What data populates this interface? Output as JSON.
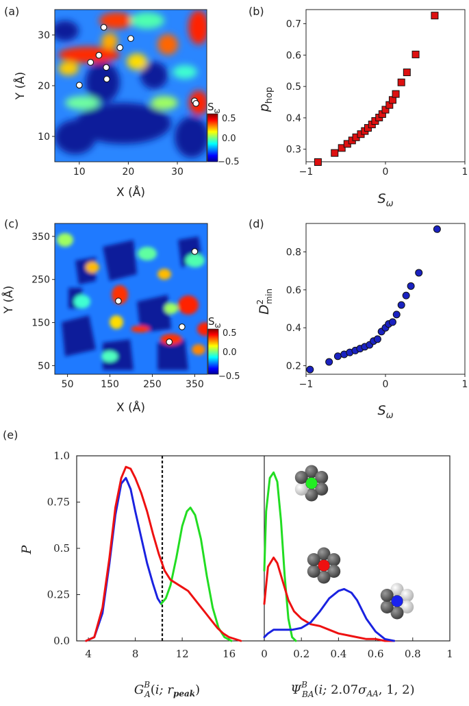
{
  "panel_labels": {
    "a": "(a)",
    "b": "(b)",
    "c": "(c)",
    "d": "(d)",
    "e": "(e)"
  },
  "chart_data": [
    {
      "id": "a",
      "type": "heatmap",
      "xlabel": "X (Å)",
      "ylabel": "Y (Å)",
      "xlim": [
        5,
        36
      ],
      "ylim": [
        5,
        35
      ],
      "xticks": [
        10,
        20,
        30
      ],
      "yticks": [
        10,
        20,
        30
      ],
      "colorbar": {
        "label": "S_ω",
        "range": [
          -0.5,
          0.5
        ],
        "ticks": [
          "0.5",
          "0.0",
          "−0.5"
        ]
      },
      "markers": [
        [
          15,
          31.5
        ],
        [
          20.5,
          29.3
        ],
        [
          18.3,
          27.5
        ],
        [
          14,
          26
        ],
        [
          12.3,
          24.6
        ],
        [
          15.5,
          23.6
        ],
        [
          15.6,
          21.3
        ],
        [
          10,
          20.1
        ],
        [
          33.5,
          17
        ],
        [
          33.8,
          16.5
        ]
      ]
    },
    {
      "id": "b",
      "type": "scatter",
      "marker": "square",
      "color": "#dd1010",
      "xlabel": "S_ω",
      "ylabel": "p_hop",
      "xlim": [
        -1,
        1
      ],
      "ylim": [
        0.26,
        0.745
      ],
      "xticks": [
        "−1",
        "0",
        "1"
      ],
      "yticks": [
        "0.3",
        "0.4",
        "0.5",
        "0.6",
        "0.7"
      ],
      "x": [
        -0.85,
        -0.64,
        -0.55,
        -0.48,
        -0.42,
        -0.37,
        -0.31,
        -0.26,
        -0.22,
        -0.17,
        -0.13,
        -0.08,
        -0.04,
        0.0,
        0.05,
        0.09,
        0.13,
        0.2,
        0.27,
        0.38,
        0.62
      ],
      "y": [
        0.259,
        0.288,
        0.304,
        0.317,
        0.328,
        0.338,
        0.348,
        0.358,
        0.368,
        0.379,
        0.39,
        0.401,
        0.412,
        0.426,
        0.441,
        0.457,
        0.476,
        0.513,
        0.545,
        0.602,
        0.726
      ]
    },
    {
      "id": "c",
      "type": "heatmap",
      "xlabel": "X (Å)",
      "ylabel": "Y (Å)",
      "xlim": [
        20,
        380
      ],
      "ylim": [
        30,
        380
      ],
      "xticks": [
        50,
        150,
        250,
        350
      ],
      "yticks": [
        50,
        150,
        250,
        350
      ],
      "colorbar": {
        "label": "S_ω",
        "range": [
          -0.5,
          0.5
        ],
        "ticks": [
          "0.5",
          "0.0",
          "−0.5"
        ]
      },
      "markers": [
        [
          350,
          315
        ],
        [
          170,
          200
        ],
        [
          320,
          140
        ],
        [
          290,
          105
        ]
      ]
    },
    {
      "id": "d",
      "type": "scatter",
      "marker": "circle",
      "color": "#1a22c0",
      "xlabel": "S_ω",
      "ylabel": "D²_min",
      "xlim": [
        -1,
        1
      ],
      "ylim": [
        0.155,
        0.95
      ],
      "xticks": [
        "−1",
        "0",
        "1"
      ],
      "yticks": [
        "0.2",
        "0.4",
        "0.6",
        "0.8"
      ],
      "x": [
        -0.95,
        -0.71,
        -0.6,
        -0.52,
        -0.45,
        -0.38,
        -0.32,
        -0.26,
        -0.2,
        -0.15,
        -0.1,
        -0.05,
        0.0,
        0.04,
        0.09,
        0.14,
        0.2,
        0.26,
        0.32,
        0.42,
        0.65
      ],
      "y": [
        0.18,
        0.22,
        0.25,
        0.26,
        0.27,
        0.28,
        0.29,
        0.3,
        0.31,
        0.33,
        0.34,
        0.38,
        0.4,
        0.42,
        0.43,
        0.47,
        0.52,
        0.57,
        0.62,
        0.69,
        0.92
      ]
    },
    {
      "id": "e1",
      "type": "line",
      "xlabel": "G_A^B(i; r_peak)",
      "ylabel": "P",
      "xlim": [
        3,
        19
      ],
      "ylim": [
        0,
        1
      ],
      "xticks": [
        "4",
        "8",
        "12",
        "16"
      ],
      "yticks": [
        "0.0",
        "0.25",
        "0.5",
        "0.75",
        "1.0"
      ],
      "vline": 10.3,
      "series": [
        {
          "name": "blue",
          "color": "#1a22e0",
          "x": [
            3.8,
            4.5,
            5.2,
            5.8,
            6.3,
            6.8,
            7.2,
            7.6,
            8.0,
            8.5,
            9.0,
            9.5,
            9.9,
            10.2
          ],
          "y": [
            0.0,
            0.02,
            0.15,
            0.42,
            0.68,
            0.85,
            0.88,
            0.82,
            0.7,
            0.56,
            0.42,
            0.31,
            0.23,
            0.2
          ]
        },
        {
          "name": "green",
          "color": "#22dd22",
          "x": [
            10.2,
            10.6,
            11.0,
            11.5,
            12.0,
            12.4,
            12.7,
            13.1,
            13.6,
            14.1,
            14.6,
            15.1,
            15.6,
            16.2
          ],
          "y": [
            0.2,
            0.23,
            0.3,
            0.45,
            0.62,
            0.7,
            0.72,
            0.68,
            0.55,
            0.35,
            0.18,
            0.07,
            0.02,
            0.0
          ]
        },
        {
          "name": "red",
          "color": "#ee1111",
          "x": [
            3.8,
            4.5,
            5.2,
            5.8,
            6.3,
            6.8,
            7.2,
            7.6,
            8.0,
            8.5,
            9.0,
            9.5,
            10.0,
            10.5,
            11.0,
            11.5,
            12.0,
            12.5,
            13.0,
            13.5,
            14.0,
            14.5,
            15.0,
            15.5,
            16.0,
            16.5,
            17.0
          ],
          "y": [
            0.0,
            0.02,
            0.18,
            0.45,
            0.72,
            0.88,
            0.94,
            0.93,
            0.88,
            0.8,
            0.7,
            0.58,
            0.47,
            0.38,
            0.33,
            0.31,
            0.29,
            0.27,
            0.23,
            0.19,
            0.15,
            0.11,
            0.07,
            0.04,
            0.02,
            0.01,
            0.0
          ]
        }
      ]
    },
    {
      "id": "e2",
      "type": "line",
      "xlabel": "Ψ_BA^B(i; 2.07σ_AA, 1, 2)",
      "xlim": [
        0,
        1
      ],
      "ylim": [
        0,
        1
      ],
      "xticks": [
        "0",
        "0.2",
        "0.4",
        "0.6",
        "0.8",
        "1"
      ],
      "series": [
        {
          "name": "green",
          "color": "#22dd22",
          "x": [
            0.0,
            0.01,
            0.03,
            0.05,
            0.07,
            0.09,
            0.11,
            0.13,
            0.15,
            0.17
          ],
          "y": [
            0.38,
            0.7,
            0.88,
            0.91,
            0.86,
            0.65,
            0.35,
            0.12,
            0.02,
            0.0
          ]
        },
        {
          "name": "red",
          "color": "#ee1111",
          "x": [
            0.0,
            0.02,
            0.05,
            0.07,
            0.1,
            0.13,
            0.16,
            0.2,
            0.25,
            0.3,
            0.35,
            0.4,
            0.45,
            0.5,
            0.55,
            0.6,
            0.65,
            0.7
          ],
          "y": [
            0.2,
            0.4,
            0.45,
            0.42,
            0.32,
            0.22,
            0.16,
            0.12,
            0.09,
            0.08,
            0.06,
            0.04,
            0.03,
            0.02,
            0.01,
            0.01,
            0.0,
            0.0
          ]
        },
        {
          "name": "blue",
          "color": "#1a22e0",
          "x": [
            0.0,
            0.02,
            0.05,
            0.1,
            0.15,
            0.2,
            0.25,
            0.3,
            0.35,
            0.4,
            0.43,
            0.47,
            0.5,
            0.55,
            0.6,
            0.65,
            0.7
          ],
          "y": [
            0.02,
            0.04,
            0.06,
            0.06,
            0.06,
            0.07,
            0.1,
            0.16,
            0.23,
            0.27,
            0.28,
            0.26,
            0.22,
            0.12,
            0.05,
            0.01,
            0.0
          ]
        }
      ],
      "insets": [
        {
          "center_color": "#22ee22",
          "outer": [
            "gray",
            "gray",
            "gray",
            "gray",
            "light",
            "gray"
          ]
        },
        {
          "center_color": "#ee1111",
          "outer": [
            "gray",
            "gray",
            "gray",
            "gray",
            "gray",
            "gray"
          ]
        },
        {
          "center_color": "#1a22ee",
          "outer": [
            "light",
            "light",
            "light",
            "gray",
            "gray",
            "gray"
          ]
        }
      ]
    }
  ]
}
